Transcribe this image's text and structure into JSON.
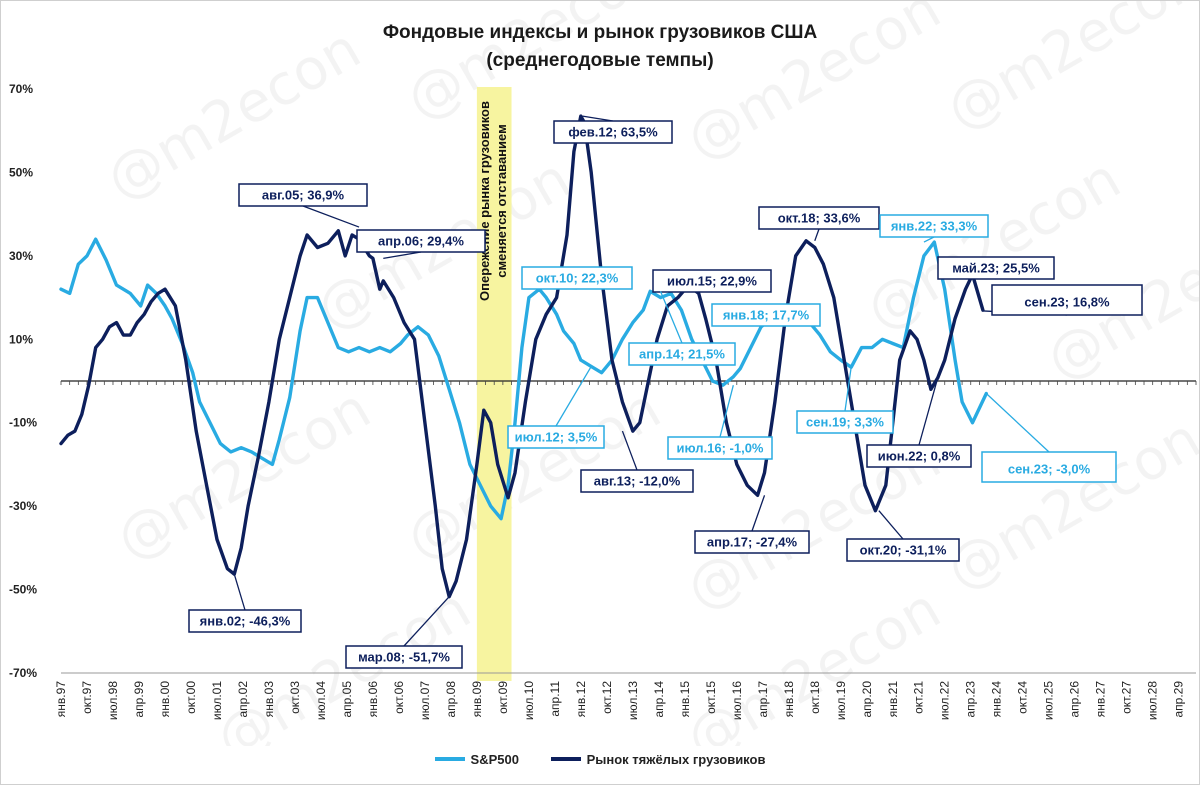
{
  "watermark": "@m2econ",
  "chart_data": {
    "type": "line",
    "title_line1": "Фондовые индексы и рынок грузовиков США",
    "title_line2": "(среднегодовые темпы)",
    "ylim": [
      -70,
      70
    ],
    "y_ticks": [
      "70%",
      "50%",
      "30%",
      "10%",
      "-10%",
      "-30%",
      "-50%",
      "-70%"
    ],
    "y_tick_values": [
      70,
      50,
      30,
      10,
      -10,
      -30,
      -50,
      -70
    ],
    "x_start_year": 1997,
    "x_end_year": 2029,
    "x_tick_labels": [
      "янв.97",
      "окт.97",
      "июл.98",
      "апр.99",
      "янв.00",
      "окт.00",
      "июл.01",
      "апр.02",
      "янв.03",
      "окт.03",
      "июл.04",
      "апр.05",
      "янв.06",
      "окт.06",
      "июл.07",
      "апр.08",
      "янв.09",
      "окт.09",
      "июл.10",
      "апр.11",
      "янв.12",
      "окт.12",
      "июл.13",
      "апр.14",
      "янв.15",
      "окт.15",
      "июл.16",
      "апр.17",
      "янв.18",
      "окт.18",
      "июл.19",
      "апр.20",
      "янв.21",
      "окт.21",
      "июл.22",
      "апр.23",
      "янв.24",
      "окт.24",
      "июл.25",
      "апр.26",
      "янв.27",
      "окт.27",
      "июл.28",
      "апр.29"
    ],
    "highlight_band": {
      "from": 2009.0,
      "to": 2010.0,
      "color": "#f7f4a0",
      "text_line1": "Опережение рынка грузовиков",
      "text_line2": "сменяется отставанием"
    },
    "series": [
      {
        "name": "S&P500",
        "color": "#29abe2",
        "x": [
          1997.0,
          1997.25,
          1997.5,
          1997.75,
          1998.0,
          1998.3,
          1998.6,
          1999.0,
          1999.3,
          1999.5,
          1999.75,
          2000.0,
          2000.2,
          2000.5,
          2000.8,
          2001.0,
          2001.3,
          2001.6,
          2001.9,
          2002.2,
          2002.5,
          2002.9,
          2003.1,
          2003.3,
          2003.6,
          2003.9,
          2004.1,
          2004.4,
          2004.7,
          2005.0,
          2005.3,
          2005.6,
          2005.9,
          2006.2,
          2006.5,
          2006.8,
          2007.0,
          2007.3,
          2007.6,
          2007.9,
          2008.2,
          2008.5,
          2008.8,
          2009.1,
          2009.4,
          2009.7,
          2009.9,
          2010.1,
          2010.3,
          2010.5,
          2010.8,
          2011.0,
          2011.3,
          2011.5,
          2011.8,
          2012.0,
          2012.3,
          2012.6,
          2012.9,
          2013.2,
          2013.5,
          2013.8,
          2014.0,
          2014.3,
          2014.6,
          2014.9,
          2015.2,
          2015.5,
          2015.8,
          2016.1,
          2016.4,
          2016.6,
          2016.9,
          2017.2,
          2017.5,
          2017.8,
          2018.0,
          2018.3,
          2018.6,
          2018.9,
          2019.2,
          2019.5,
          2019.8,
          2020.1,
          2020.4,
          2020.7,
          2021.0,
          2021.3,
          2021.6,
          2021.9,
          2022.2,
          2022.5,
          2022.8,
          2023.0,
          2023.3,
          2023.7
        ],
        "values": [
          22,
          21,
          28,
          30,
          34,
          29,
          23,
          21,
          18,
          23,
          21,
          18,
          15,
          9,
          2,
          -5,
          -10,
          -15,
          -17,
          -16,
          -17,
          -19,
          -20,
          -14,
          -4,
          12,
          20,
          20,
          14,
          8,
          7,
          8,
          7,
          8,
          7,
          9,
          11,
          13,
          11,
          6,
          -2,
          -10,
          -20,
          -25,
          -30,
          -33,
          -25,
          -10,
          8,
          20,
          22,
          20,
          16,
          12,
          9,
          5,
          3.5,
          2,
          5,
          10,
          14,
          17,
          21.5,
          20,
          21,
          17,
          10,
          5,
          0,
          -1,
          1,
          3,
          8,
          13,
          15,
          17.7,
          16,
          15,
          14,
          11,
          7,
          5,
          3.3,
          8,
          8,
          10,
          9,
          8,
          20,
          30,
          33.3,
          22,
          5,
          -5,
          -10,
          -3
        ]
      },
      {
        "name": "Рынок тяжёлых грузовиков",
        "color": "#0d1f5c",
        "x": [
          1997.0,
          1997.2,
          1997.4,
          1997.6,
          1997.8,
          1998.0,
          1998.2,
          1998.4,
          1998.6,
          1998.8,
          1999.0,
          1999.2,
          1999.4,
          1999.6,
          1999.8,
          2000.0,
          2000.3,
          2000.6,
          2000.9,
          2001.2,
          2001.5,
          2001.8,
          2002.0,
          2002.2,
          2002.4,
          2002.7,
          2003.0,
          2003.3,
          2003.6,
          2003.9,
          2004.1,
          2004.4,
          2004.7,
          2005.0,
          2005.2,
          2005.4,
          2005.6,
          2005.9,
          2006.0,
          2006.2,
          2006.3,
          2006.6,
          2006.9,
          2007.2,
          2007.5,
          2007.8,
          2008.0,
          2008.2,
          2008.4,
          2008.7,
          2009.0,
          2009.2,
          2009.4,
          2009.6,
          2009.9,
          2010.1,
          2010.4,
          2010.7,
          2011.0,
          2011.3,
          2011.6,
          2011.8,
          2012.0,
          2012.1,
          2012.3,
          2012.6,
          2012.9,
          2013.2,
          2013.5,
          2013.7,
          2013.9,
          2014.2,
          2014.5,
          2014.8,
          2015.1,
          2015.4,
          2015.6,
          2015.9,
          2016.2,
          2016.5,
          2016.8,
          2017.1,
          2017.3,
          2017.6,
          2017.9,
          2018.2,
          2018.5,
          2018.75,
          2019.0,
          2019.3,
          2019.6,
          2019.9,
          2020.2,
          2020.5,
          2020.8,
          2021.0,
          2021.2,
          2021.5,
          2021.7,
          2021.9,
          2022.1,
          2022.3,
          2022.5,
          2022.8,
          2023.1,
          2023.3,
          2023.6
        ],
        "values": [
          -15,
          -13,
          -12,
          -8,
          -1,
          8,
          10,
          13,
          14,
          11,
          11,
          14,
          16,
          19,
          21,
          22,
          18,
          5,
          -12,
          -25,
          -38,
          -45,
          -46.3,
          -40,
          -30,
          -18,
          -5,
          10,
          20,
          30,
          35,
          32,
          33,
          36,
          30,
          35,
          34,
          30,
          29.4,
          22,
          24,
          20,
          14,
          10,
          -10,
          -30,
          -45,
          -51.7,
          -48,
          -38,
          -20,
          -7,
          -10,
          -20,
          -28,
          -22,
          -5,
          10,
          16,
          20,
          35,
          55,
          63.5,
          62,
          50,
          25,
          5,
          -5,
          -12,
          -10,
          -2,
          10,
          18,
          20,
          22.9,
          21,
          15,
          5,
          -10,
          -20,
          -25,
          -27.4,
          -22,
          -5,
          15,
          30,
          33.6,
          32,
          28,
          20,
          5,
          -10,
          -25,
          -31.1,
          -25,
          -10,
          5,
          12,
          10,
          5,
          -2,
          0.8,
          5,
          15,
          22,
          25.5,
          17
        ]
      }
    ],
    "annotations": [
      {
        "text": "авг.05; 36,9%",
        "series": 1
      },
      {
        "text": "апр.06; 29,4%",
        "series": 1
      },
      {
        "text": "фев.12; 63,5%",
        "series": 1
      },
      {
        "text": "окт.18; 33,6%",
        "series": 1
      },
      {
        "text": "июл.15; 22,9%",
        "series": 1
      },
      {
        "text": "май.23; 25,5%",
        "series": 1
      },
      {
        "text": "сен.23; 16,8%",
        "series": 1
      },
      {
        "text": "янв.02; -46,3%",
        "series": 1
      },
      {
        "text": "мар.08; -51,7%",
        "series": 1
      },
      {
        "text": "авг.13; -12,0%",
        "series": 1
      },
      {
        "text": "апр.17; -27,4%",
        "series": 1
      },
      {
        "text": "окт.20; -31,1%",
        "series": 1
      },
      {
        "text": "июн.22; 0,8%",
        "series": 1
      },
      {
        "text": "окт.10; 22,3%",
        "series": 0
      },
      {
        "text": "апр.14; 21,5%",
        "series": 0
      },
      {
        "text": "янв.18; 17,7%",
        "series": 0
      },
      {
        "text": "янв.22; 33,3%",
        "series": 0
      },
      {
        "text": "июл.12; 3,5%",
        "series": 0
      },
      {
        "text": "июл.16; -1,0%",
        "series": 0
      },
      {
        "text": "сен.19; 3,3%",
        "series": 0
      },
      {
        "text": "сен.23; -3,0%",
        "series": 0
      }
    ],
    "legend": [
      "S&P500",
      "Рынок тяжёлых грузовиков"
    ]
  }
}
